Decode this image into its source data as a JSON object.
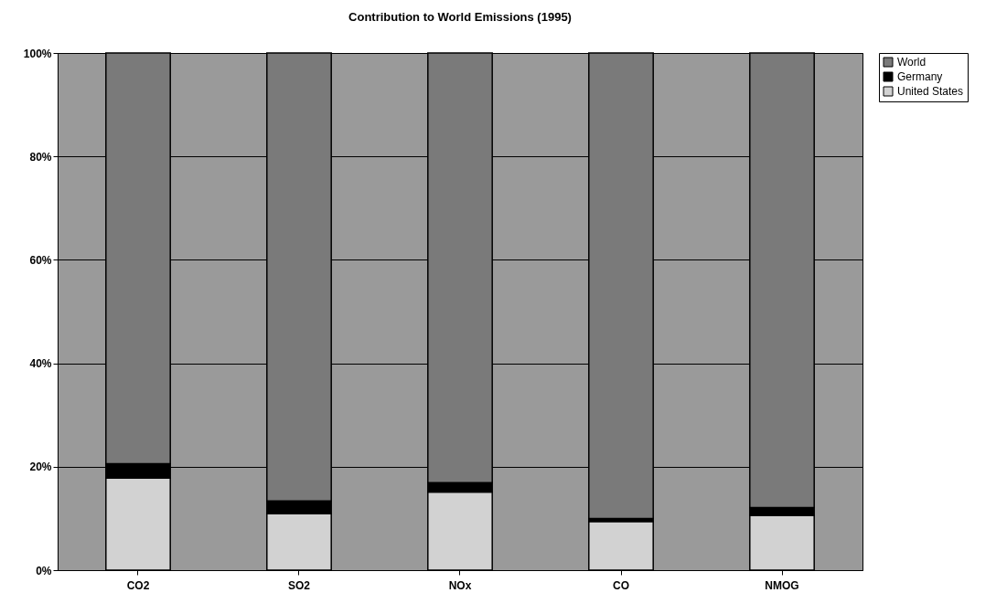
{
  "chart_data": {
    "type": "bar",
    "title": "Contribution to World Emissions  (1995)",
    "categories": [
      "CO2",
      "SO2",
      "NOx",
      "CO",
      "NMOG"
    ],
    "stacked": true,
    "series": [
      {
        "name": "United States",
        "color": "#d2d2d2",
        "values": [
          17.8,
          10.9,
          15.1,
          9.4,
          10.6
        ]
      },
      {
        "name": "Germany",
        "color": "#000000",
        "values": [
          2.8,
          2.5,
          1.8,
          0.6,
          1.5
        ]
      },
      {
        "name": "World",
        "color": "#7a7a7a",
        "values": [
          79.4,
          86.6,
          83.1,
          90.0,
          87.9
        ]
      }
    ],
    "ylim": [
      0,
      100
    ],
    "yticks": [
      {
        "value": 0,
        "label": "0%"
      },
      {
        "value": 20,
        "label": "20%"
      },
      {
        "value": 40,
        "label": "40%"
      },
      {
        "value": 60,
        "label": "60%"
      },
      {
        "value": 80,
        "label": "80%"
      },
      {
        "value": 100,
        "label": "100%"
      }
    ],
    "grid": "y",
    "legend": "right"
  }
}
